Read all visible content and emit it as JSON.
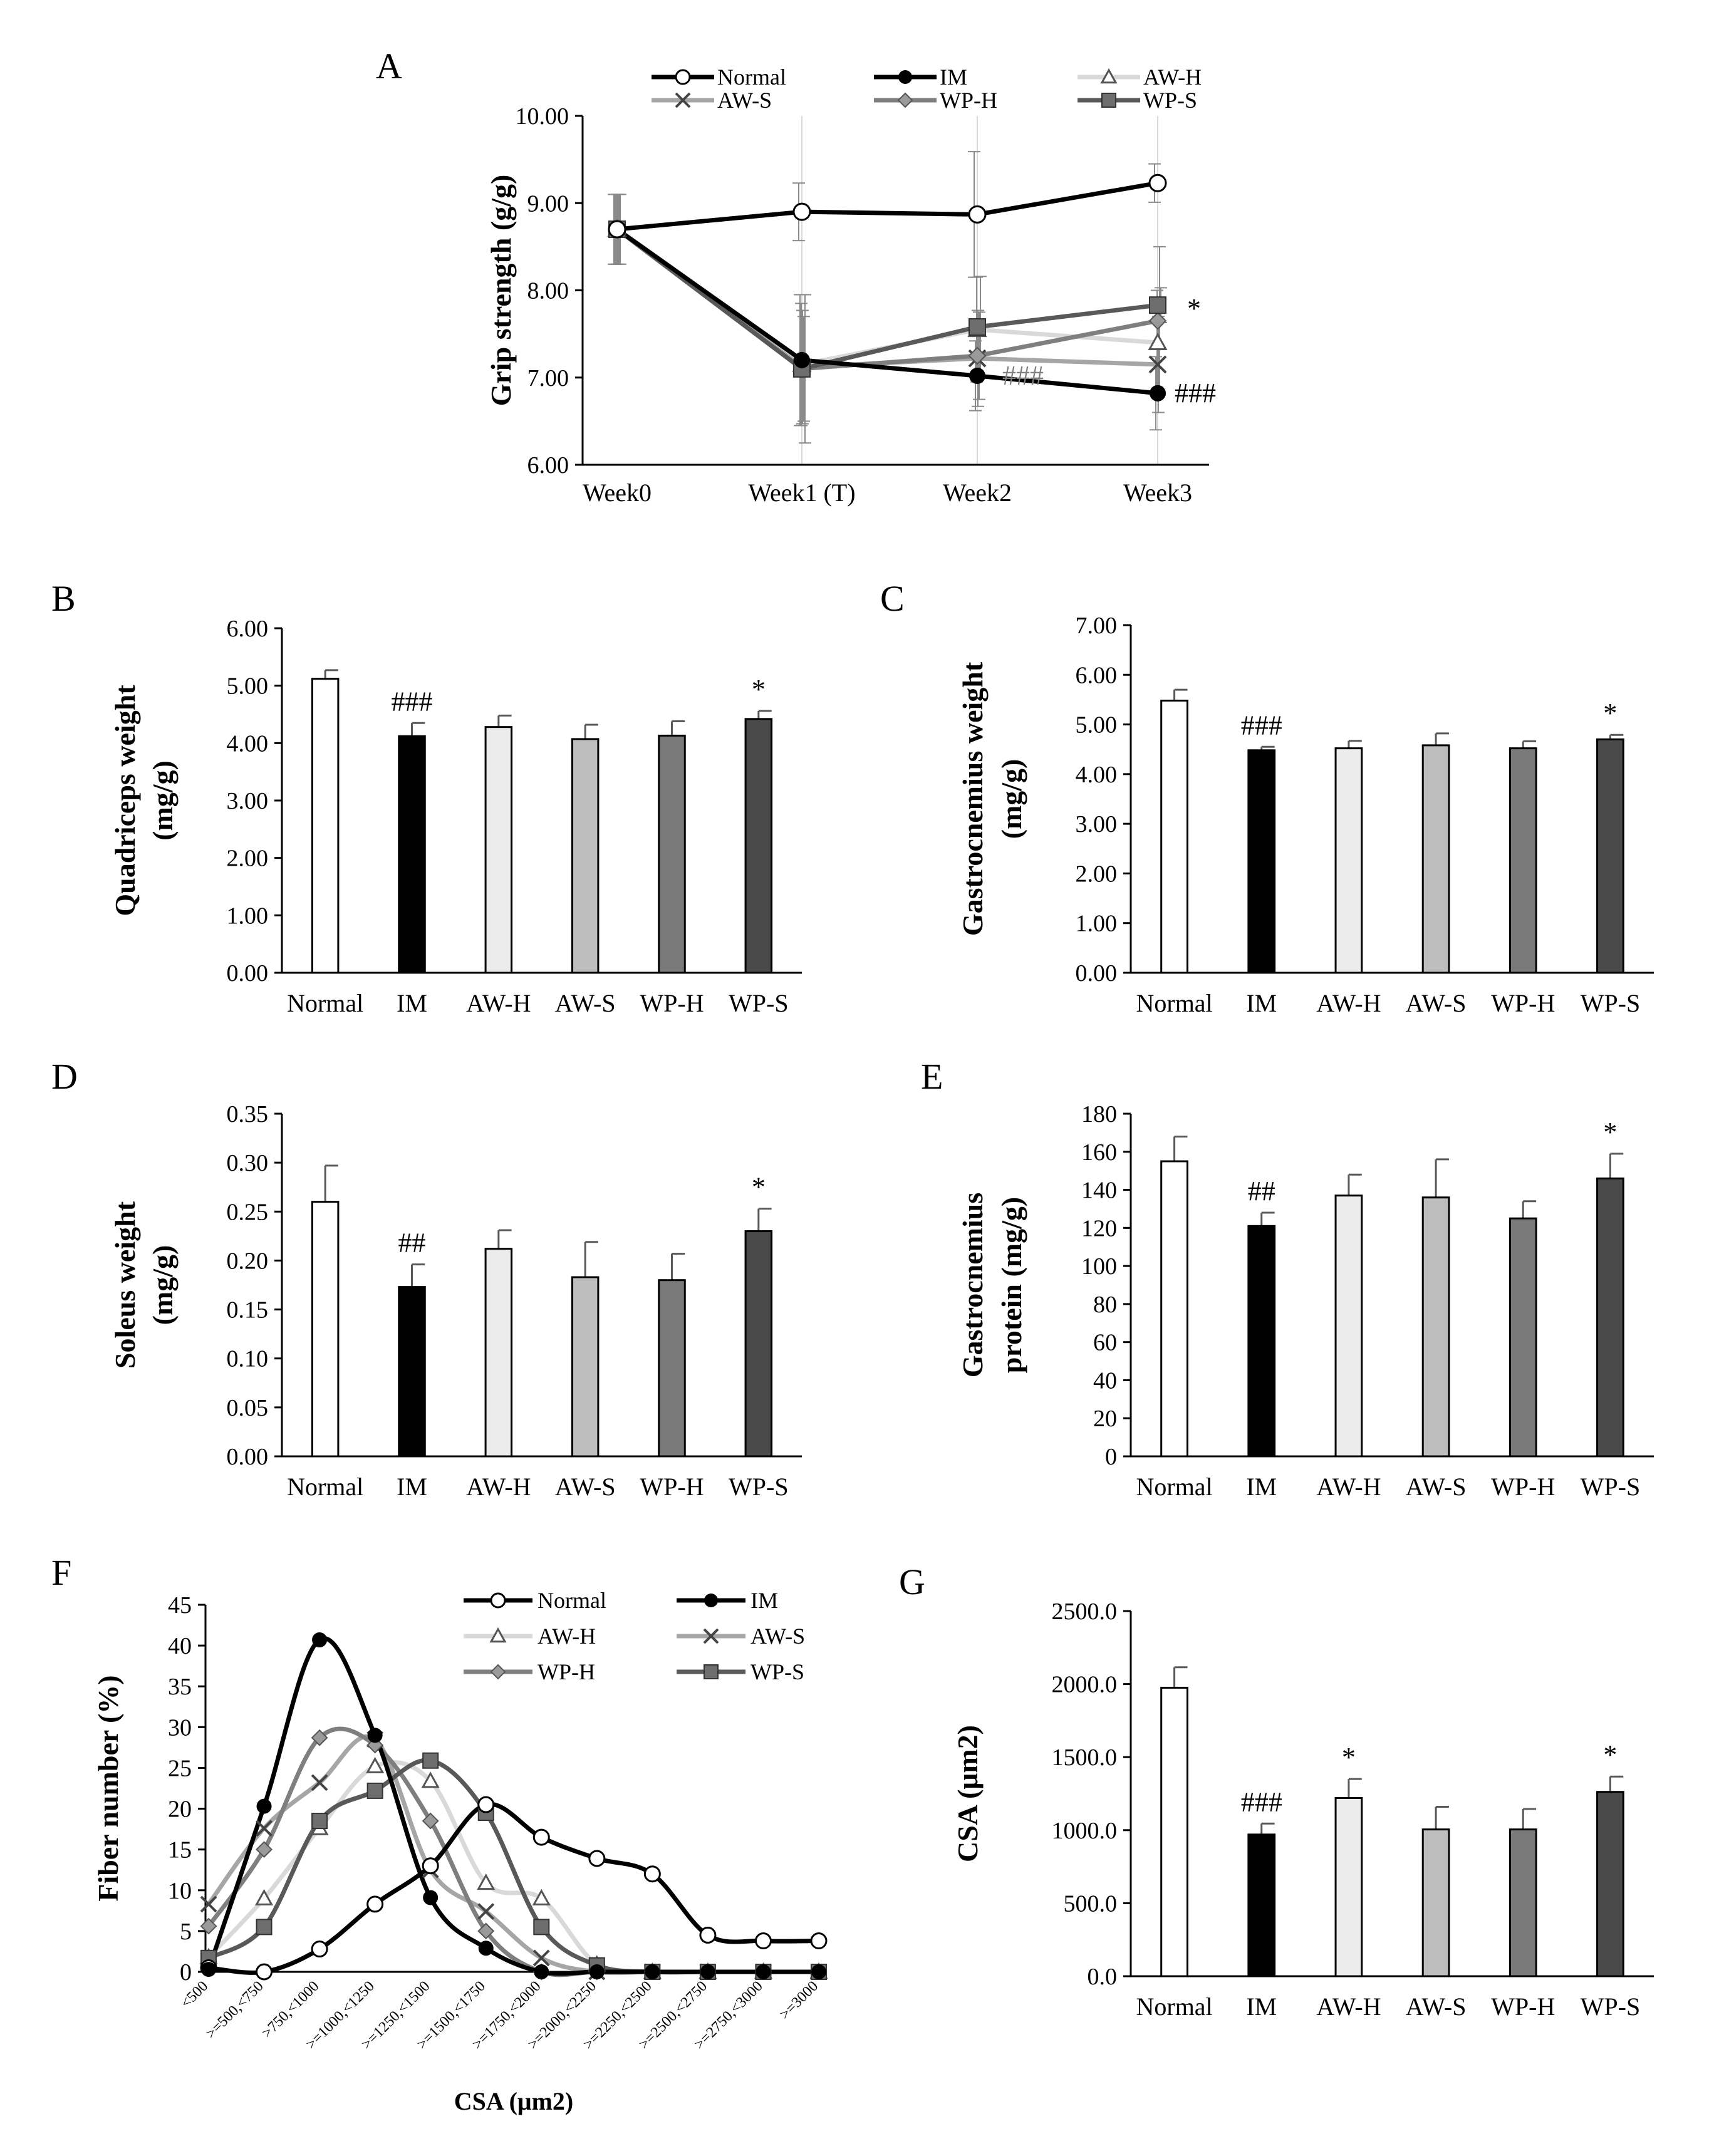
{
  "colors": {
    "Normal": "#ffffff",
    "IM": "#000000",
    "AW-H": "#ececec",
    "AW-S": "#bdbdbd",
    "WP-H": "#7a7a7a",
    "WP-S": "#4a4a4a",
    "line_Normal": "#000000",
    "line_IM": "#000000",
    "line_AW-H": "#d9d9d9",
    "line_AW-S": "#a6a6a6",
    "line_WP-H": "#7f7f7f",
    "line_WP-S": "#595959"
  },
  "chart_data": [
    {
      "id": "A",
      "type": "line",
      "panel_label": "A",
      "ylabel": "Grip strength (g/g)",
      "x": [
        "Week0",
        "Week1 (T)",
        "Week2",
        "Week3"
      ],
      "ylim": [
        6.0,
        10.0
      ],
      "yticks": [
        "6.00",
        "7.00",
        "8.00",
        "9.00",
        "10.00"
      ],
      "series": [
        {
          "name": "Normal",
          "marker": "circle-open",
          "values": [
            8.7,
            8.9,
            8.87,
            9.23
          ],
          "err": [
            0.4,
            0.33,
            0.72,
            0.22
          ]
        },
        {
          "name": "IM",
          "marker": "circle-filled",
          "values": [
            8.7,
            7.2,
            7.02,
            6.82
          ],
          "err": [
            0.4,
            0.75,
            0.4,
            0.42
          ]
        },
        {
          "name": "AW-H",
          "marker": "triangle",
          "values": [
            8.7,
            7.15,
            7.55,
            7.4
          ],
          "err": [
            0.4,
            0.7,
            0.6,
            0.6
          ]
        },
        {
          "name": "AW-S",
          "marker": "x",
          "values": [
            8.7,
            7.12,
            7.22,
            7.15
          ],
          "err": [
            0.4,
            0.65,
            0.55,
            0.55
          ]
        },
        {
          "name": "WP-H",
          "marker": "diamond",
          "values": [
            8.7,
            7.1,
            7.25,
            7.65
          ],
          "err": [
            0.4,
            0.6,
            0.5,
            0.85
          ]
        },
        {
          "name": "WP-S",
          "marker": "square",
          "values": [
            8.7,
            7.1,
            7.58,
            7.83
          ],
          "err": [
            0.4,
            0.85,
            0.58,
            0.2
          ]
        }
      ],
      "annotations": [
        {
          "text": "###",
          "series": "IM",
          "week": "Week2"
        },
        {
          "text": "###",
          "series": "IM",
          "week": "Week3"
        },
        {
          "text": "*",
          "series": "WP-S",
          "week": "Week3"
        }
      ]
    },
    {
      "id": "B",
      "type": "bar",
      "panel_label": "B",
      "ylabel": [
        "Quadriceps weight",
        "(mg/g)"
      ],
      "categories": [
        "Normal",
        "IM",
        "AW-H",
        "AW-S",
        "WP-H",
        "WP-S"
      ],
      "values": [
        5.12,
        4.12,
        4.28,
        4.07,
        4.13,
        4.42
      ],
      "err": [
        0.15,
        0.23,
        0.2,
        0.25,
        0.25,
        0.14
      ],
      "ylim": [
        0,
        6
      ],
      "yticks": [
        "0.00",
        "1.00",
        "2.00",
        "3.00",
        "4.00",
        "5.00",
        "6.00"
      ],
      "annotations": [
        "",
        "###",
        "",
        "",
        "",
        "*"
      ]
    },
    {
      "id": "C",
      "type": "bar",
      "panel_label": "C",
      "ylabel": [
        "Gastrocnemius weight",
        "(mg/g)"
      ],
      "categories": [
        "Normal",
        "IM",
        "AW-H",
        "AW-S",
        "WP-H",
        "WP-S"
      ],
      "values": [
        5.48,
        4.48,
        4.52,
        4.58,
        4.52,
        4.7
      ],
      "err": [
        0.22,
        0.07,
        0.15,
        0.24,
        0.14,
        0.09
      ],
      "ylim": [
        0,
        7
      ],
      "yticks": [
        "0.00",
        "1.00",
        "2.00",
        "3.00",
        "4.00",
        "5.00",
        "6.00",
        "7.00"
      ],
      "annotations": [
        "",
        "###",
        "",
        "",
        "",
        "*"
      ]
    },
    {
      "id": "D",
      "type": "bar",
      "panel_label": "D",
      "ylabel": [
        "Soleus weight",
        "(mg/g)"
      ],
      "categories": [
        "Normal",
        "IM",
        "AW-H",
        "AW-S",
        "WP-H",
        "WP-S"
      ],
      "values": [
        0.26,
        0.173,
        0.212,
        0.183,
        0.18,
        0.23
      ],
      "err": [
        0.037,
        0.023,
        0.019,
        0.036,
        0.027,
        0.023
      ],
      "ylim": [
        0,
        0.35
      ],
      "yticks": [
        "0.00",
        "0.05",
        "0.10",
        "0.15",
        "0.20",
        "0.25",
        "0.30",
        "0.35"
      ],
      "annotations": [
        "",
        "##",
        "",
        "",
        "",
        "*"
      ]
    },
    {
      "id": "E",
      "type": "bar",
      "panel_label": "E",
      "ylabel": [
        "Gastrocnemius",
        "protein (mg/g)"
      ],
      "categories": [
        "Normal",
        "IM",
        "AW-H",
        "AW-S",
        "WP-H",
        "WP-S"
      ],
      "values": [
        155,
        121,
        137,
        136,
        125,
        146
      ],
      "err": [
        13,
        7,
        11,
        20,
        9,
        13
      ],
      "ylim": [
        0,
        180
      ],
      "yticks": [
        "0",
        "20",
        "40",
        "60",
        "80",
        "100",
        "120",
        "140",
        "160",
        "180"
      ],
      "annotations": [
        "",
        "##",
        "",
        "",
        "",
        "*"
      ]
    },
    {
      "id": "F",
      "type": "line",
      "panel_label": "F",
      "ylabel": "Fiber number (%)",
      "xlabel": "CSA (μm2)",
      "x": [
        "<500",
        ">=500,<750",
        ">750,<1000",
        ">=1000,<1250",
        ">=1250,<1500",
        ">=1500,<1750",
        ">=1750,<2000",
        ">=2000,<2250",
        ">=2250,<2500",
        ">=2500,<2750",
        ">=2750,<3000",
        ">=3000"
      ],
      "ylim": [
        0,
        45
      ],
      "yticks": [
        "0",
        "5",
        "10",
        "15",
        "20",
        "25",
        "30",
        "35",
        "40",
        "45"
      ],
      "series": [
        {
          "name": "Normal",
          "marker": "circle-open",
          "values": [
            0.5,
            0,
            2.8,
            8.3,
            13.0,
            20.5,
            16.5,
            13.9,
            12.0,
            4.5,
            3.8,
            3.8
          ]
        },
        {
          "name": "IM",
          "marker": "circle-filled",
          "values": [
            0.3,
            20.3,
            40.7,
            29.0,
            9.1,
            2.9,
            0,
            0,
            0,
            0,
            0,
            0
          ]
        },
        {
          "name": "AW-H",
          "marker": "triangle",
          "values": [
            1.8,
            9.0,
            17.6,
            25.2,
            23.4,
            10.9,
            9.0,
            0.9,
            0,
            0,
            0,
            0
          ]
        },
        {
          "name": "AW-S",
          "marker": "x",
          "values": [
            8.3,
            17.6,
            23.2,
            28.5,
            12.5,
            7.4,
            1.7,
            0,
            0,
            0,
            0,
            0
          ]
        },
        {
          "name": "WP-H",
          "marker": "diamond",
          "values": [
            5.6,
            15.0,
            28.7,
            27.8,
            18.5,
            5.0,
            0,
            0,
            0,
            0,
            0,
            0
          ]
        },
        {
          "name": "WP-S",
          "marker": "square",
          "values": [
            1.7,
            5.5,
            18.5,
            22.2,
            25.9,
            19.5,
            5.5,
            0.8,
            0,
            0,
            0,
            0
          ]
        }
      ]
    },
    {
      "id": "G",
      "type": "bar",
      "panel_label": "G",
      "ylabel": "CSA (μm2)",
      "categories": [
        "Normal",
        "IM",
        "AW-H",
        "AW-S",
        "WP-H",
        "WP-S"
      ],
      "values": [
        1975,
        970,
        1220,
        1005,
        1005,
        1262
      ],
      "err": [
        140,
        75,
        130,
        155,
        140,
        105
      ],
      "ylim": [
        0,
        2500
      ],
      "yticks": [
        "0.0",
        "500.0",
        "1000.0",
        "1500.0",
        "2000.0",
        "2500.0"
      ],
      "annotations": [
        "",
        "###",
        "*",
        "",
        "",
        "*"
      ]
    }
  ]
}
